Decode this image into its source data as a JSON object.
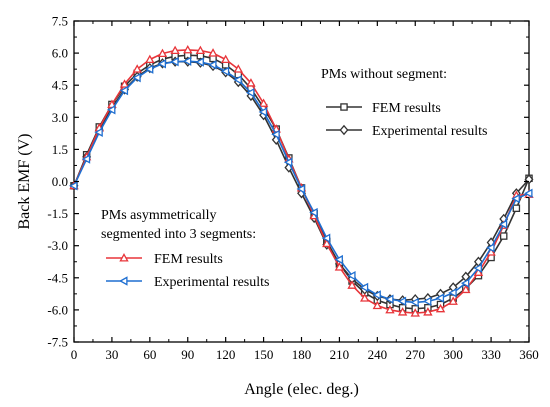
{
  "chart_data": {
    "type": "line",
    "xlabel": "Angle (elec. deg.)",
    "ylabel": "Back EMF (V)",
    "xlim": [
      0,
      360
    ],
    "ylim": [
      -7.5,
      7.5
    ],
    "xticks": [
      0,
      30,
      60,
      90,
      120,
      150,
      180,
      210,
      240,
      270,
      300,
      330,
      360
    ],
    "yticks": [
      -7.5,
      -6.0,
      -4.5,
      -3.0,
      -1.5,
      0.0,
      1.5,
      3.0,
      4.5,
      6.0,
      7.5
    ],
    "xtick_labels": [
      "0",
      "30",
      "60",
      "90",
      "120",
      "150",
      "180",
      "210",
      "240",
      "270",
      "300",
      "330",
      "360"
    ],
    "ytick_labels": [
      "-7.5",
      "-6.0",
      "-4.5",
      "-3.0",
      "-1.5",
      "0.0",
      "1.5",
      "3.0",
      "4.5",
      "6.0",
      "7.5"
    ],
    "grid": false,
    "x": [
      0,
      10,
      20,
      30,
      40,
      50,
      60,
      70,
      80,
      90,
      100,
      110,
      120,
      130,
      140,
      150,
      160,
      170,
      180,
      190,
      200,
      210,
      220,
      230,
      240,
      250,
      260,
      270,
      280,
      290,
      300,
      310,
      320,
      330,
      340,
      350,
      360
    ],
    "legend_groups": [
      {
        "title": "PMs without segment:",
        "placement": "top-right",
        "entries": [
          "FEM results",
          "Experimental results"
        ]
      },
      {
        "title_lines": [
          "PMs asymmetrically",
          "segmented into 3 segments:"
        ],
        "placement": "lower-left",
        "entries": [
          "FEM results",
          "Experimental results"
        ]
      }
    ],
    "series": [
      {
        "group": 0,
        "entry": 0,
        "color": "#333333",
        "marker": "square",
        "values": [
          -0.2,
          1.25,
          2.55,
          3.6,
          4.45,
          5.05,
          5.45,
          5.72,
          5.85,
          5.9,
          5.88,
          5.75,
          5.45,
          5.0,
          4.35,
          3.45,
          2.45,
          1.1,
          -0.3,
          -1.5,
          -2.8,
          -3.85,
          -4.65,
          -5.2,
          -5.55,
          -5.75,
          -5.9,
          -5.95,
          -5.9,
          -5.75,
          -5.45,
          -5.0,
          -4.4,
          -3.55,
          -2.55,
          -1.25,
          0.15
        ]
      },
      {
        "group": 0,
        "entry": 1,
        "color": "#333333",
        "marker": "diamond",
        "values": [
          -0.2,
          1.15,
          2.4,
          3.45,
          4.3,
          4.9,
          5.3,
          5.52,
          5.6,
          5.6,
          5.55,
          5.4,
          5.1,
          4.65,
          4.0,
          3.1,
          1.95,
          0.65,
          -0.55,
          -1.7,
          -2.95,
          -3.85,
          -4.55,
          -5.05,
          -5.35,
          -5.5,
          -5.55,
          -5.5,
          -5.45,
          -5.25,
          -4.95,
          -4.45,
          -3.75,
          -2.85,
          -1.75,
          -0.55,
          0.1
        ]
      },
      {
        "group": 1,
        "entry": 0,
        "color": "#e8353a",
        "marker": "triangle",
        "values": [
          -0.2,
          1.15,
          2.5,
          3.6,
          4.55,
          5.25,
          5.7,
          5.98,
          6.12,
          6.15,
          6.12,
          6.0,
          5.7,
          5.25,
          4.6,
          3.65,
          2.45,
          1.05,
          -0.3,
          -1.6,
          -2.9,
          -4.0,
          -4.85,
          -5.45,
          -5.8,
          -6.0,
          -6.1,
          -6.15,
          -6.1,
          -5.95,
          -5.6,
          -5.05,
          -4.25,
          -3.3,
          -2.05,
          -0.65,
          -0.6
        ]
      },
      {
        "group": 1,
        "entry": 1,
        "color": "#1f6fd1",
        "marker": "triangle-left",
        "values": [
          -0.2,
          1.05,
          2.3,
          3.35,
          4.25,
          4.85,
          5.25,
          5.5,
          5.6,
          5.62,
          5.58,
          5.45,
          5.15,
          4.75,
          4.15,
          3.25,
          2.2,
          0.9,
          -0.35,
          -1.45,
          -2.65,
          -3.65,
          -4.4,
          -4.95,
          -5.3,
          -5.5,
          -5.6,
          -5.65,
          -5.6,
          -5.45,
          -5.2,
          -4.75,
          -4.05,
          -3.1,
          -2.0,
          -0.8,
          -0.55
        ]
      }
    ]
  }
}
